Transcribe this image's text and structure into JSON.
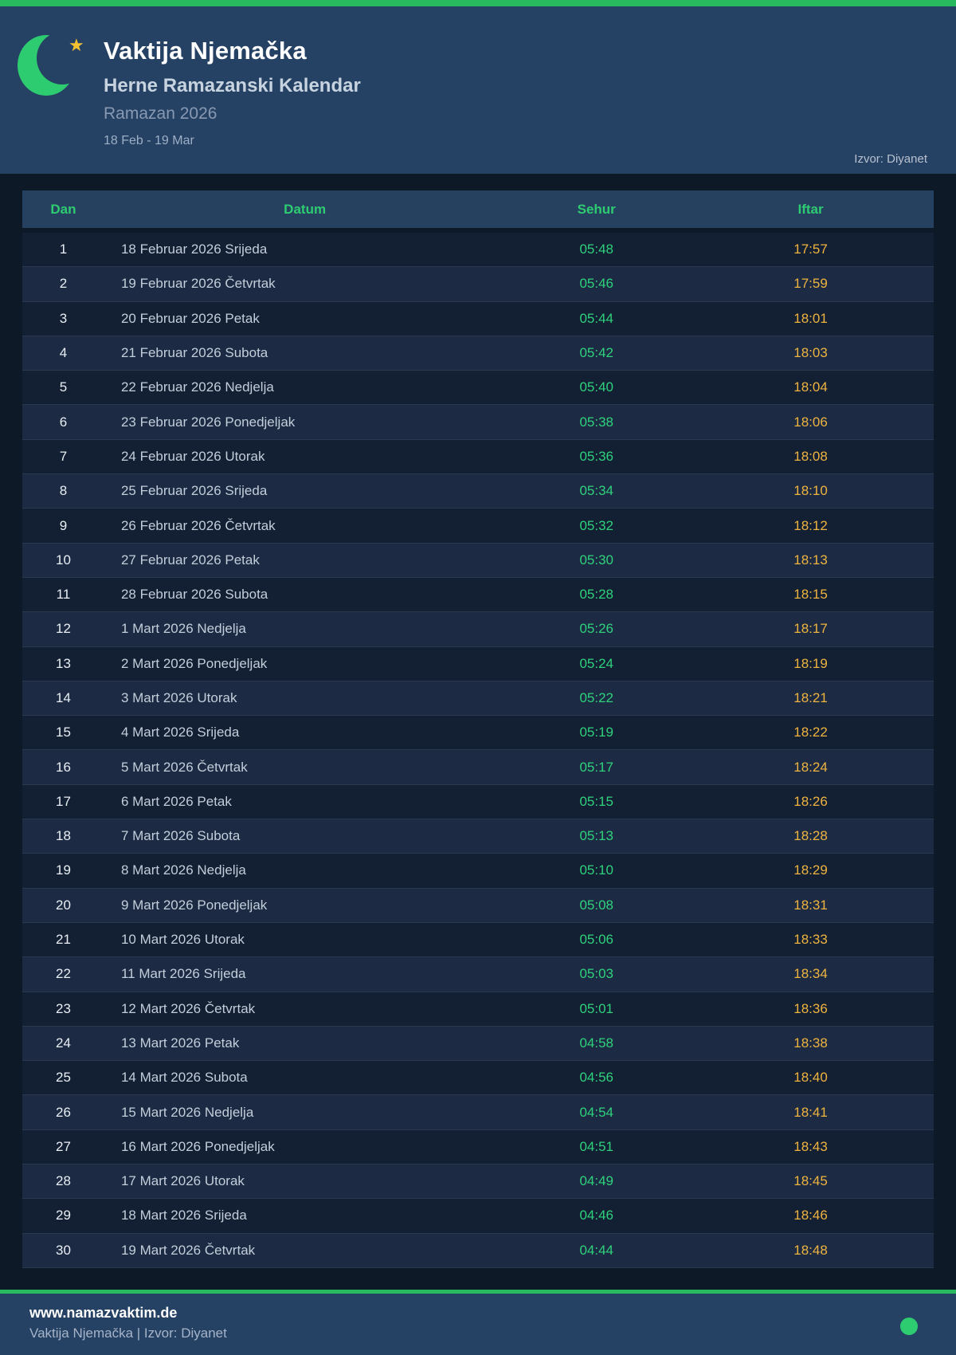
{
  "header": {
    "title": "Vaktija Njemačka",
    "subtitle": "Herne Ramazanski Kalendar",
    "season": "Ramazan 2026",
    "date_range": "18 Feb - 19 Mar",
    "source": "Izvor: Diyanet",
    "star_glyph": "★",
    "icons": [
      "crescent-moon-icon",
      "star-icon"
    ]
  },
  "colors": {
    "accent_green": "#2ecc71",
    "top_bar_green": "#28b95f",
    "iftar_gold": "#efb440",
    "sehur_green": "#2fd27c",
    "header_bg": "#254163",
    "page_bg": "#0e1928",
    "table_header_bg": "#264160",
    "row_odd_bg": "#131f32",
    "row_even_bg": "#1c2b43",
    "star_gold": "#f2c230"
  },
  "table": {
    "columns": [
      "Dan",
      "Datum",
      "Sehur",
      "Iftar"
    ],
    "rows": [
      {
        "dan": "1",
        "datum": "18 Februar 2026 Srijeda",
        "sehur": "05:48",
        "iftar": "17:57"
      },
      {
        "dan": "2",
        "datum": "19 Februar 2026 Četvrtak",
        "sehur": "05:46",
        "iftar": "17:59"
      },
      {
        "dan": "3",
        "datum": "20 Februar 2026 Petak",
        "sehur": "05:44",
        "iftar": "18:01"
      },
      {
        "dan": "4",
        "datum": "21 Februar 2026 Subota",
        "sehur": "05:42",
        "iftar": "18:03"
      },
      {
        "dan": "5",
        "datum": "22 Februar 2026 Nedjelja",
        "sehur": "05:40",
        "iftar": "18:04"
      },
      {
        "dan": "6",
        "datum": "23 Februar 2026 Ponedjeljak",
        "sehur": "05:38",
        "iftar": "18:06"
      },
      {
        "dan": "7",
        "datum": "24 Februar 2026 Utorak",
        "sehur": "05:36",
        "iftar": "18:08"
      },
      {
        "dan": "8",
        "datum": "25 Februar 2026 Srijeda",
        "sehur": "05:34",
        "iftar": "18:10"
      },
      {
        "dan": "9",
        "datum": "26 Februar 2026 Četvrtak",
        "sehur": "05:32",
        "iftar": "18:12"
      },
      {
        "dan": "10",
        "datum": "27 Februar 2026 Petak",
        "sehur": "05:30",
        "iftar": "18:13"
      },
      {
        "dan": "11",
        "datum": "28 Februar 2026 Subota",
        "sehur": "05:28",
        "iftar": "18:15"
      },
      {
        "dan": "12",
        "datum": "1 Mart 2026 Nedjelja",
        "sehur": "05:26",
        "iftar": "18:17"
      },
      {
        "dan": "13",
        "datum": "2 Mart 2026 Ponedjeljak",
        "sehur": "05:24",
        "iftar": "18:19"
      },
      {
        "dan": "14",
        "datum": "3 Mart 2026 Utorak",
        "sehur": "05:22",
        "iftar": "18:21"
      },
      {
        "dan": "15",
        "datum": "4 Mart 2026 Srijeda",
        "sehur": "05:19",
        "iftar": "18:22"
      },
      {
        "dan": "16",
        "datum": "5 Mart 2026 Četvrtak",
        "sehur": "05:17",
        "iftar": "18:24"
      },
      {
        "dan": "17",
        "datum": "6 Mart 2026 Petak",
        "sehur": "05:15",
        "iftar": "18:26"
      },
      {
        "dan": "18",
        "datum": "7 Mart 2026 Subota",
        "sehur": "05:13",
        "iftar": "18:28"
      },
      {
        "dan": "19",
        "datum": "8 Mart 2026 Nedjelja",
        "sehur": "05:10",
        "iftar": "18:29"
      },
      {
        "dan": "20",
        "datum": "9 Mart 2026 Ponedjeljak",
        "sehur": "05:08",
        "iftar": "18:31"
      },
      {
        "dan": "21",
        "datum": "10 Mart 2026 Utorak",
        "sehur": "05:06",
        "iftar": "18:33"
      },
      {
        "dan": "22",
        "datum": "11 Mart 2026 Srijeda",
        "sehur": "05:03",
        "iftar": "18:34"
      },
      {
        "dan": "23",
        "datum": "12 Mart 2026 Četvrtak",
        "sehur": "05:01",
        "iftar": "18:36"
      },
      {
        "dan": "24",
        "datum": "13 Mart 2026 Petak",
        "sehur": "04:58",
        "iftar": "18:38"
      },
      {
        "dan": "25",
        "datum": "14 Mart 2026 Subota",
        "sehur": "04:56",
        "iftar": "18:40"
      },
      {
        "dan": "26",
        "datum": "15 Mart 2026 Nedjelja",
        "sehur": "04:54",
        "iftar": "18:41"
      },
      {
        "dan": "27",
        "datum": "16 Mart 2026 Ponedjeljak",
        "sehur": "04:51",
        "iftar": "18:43"
      },
      {
        "dan": "28",
        "datum": "17 Mart 2026 Utorak",
        "sehur": "04:49",
        "iftar": "18:45"
      },
      {
        "dan": "29",
        "datum": "18 Mart 2026 Srijeda",
        "sehur": "04:46",
        "iftar": "18:46"
      },
      {
        "dan": "30",
        "datum": "19 Mart 2026 Četvrtak",
        "sehur": "04:44",
        "iftar": "18:48"
      }
    ]
  },
  "footer": {
    "website": "www.namazvaktim.de",
    "tagline": "Vaktija Njemačka | Izvor: Diyanet",
    "icons": [
      "green-dot-icon"
    ]
  }
}
